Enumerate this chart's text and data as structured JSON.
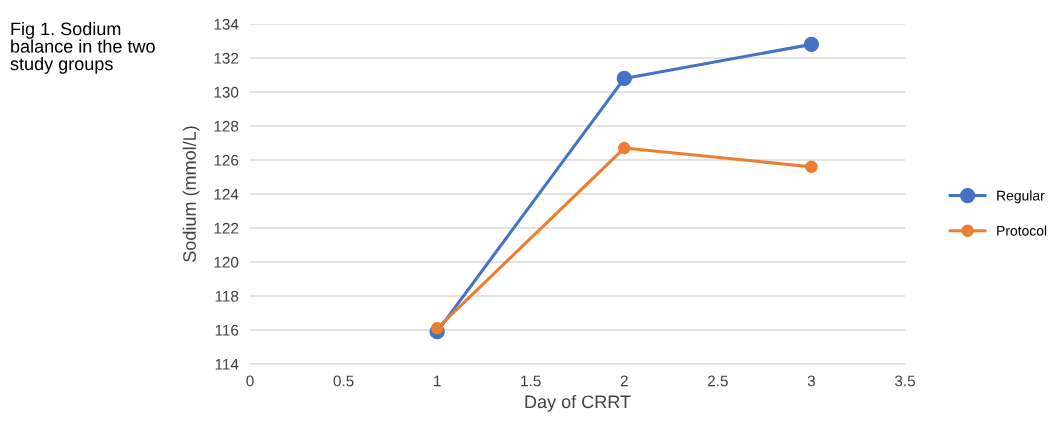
{
  "chart_data": {
    "type": "line",
    "title": "Fig 1. Sodium\nbalance in the two\nstudy groups",
    "xlabel": "Day of CRRT",
    "ylabel": "Sodium (mmol/L)",
    "x": [
      1,
      2,
      3
    ],
    "series": [
      {
        "name": "Regular",
        "color": "#4472c4",
        "values": [
          115.9,
          130.8,
          132.8
        ]
      },
      {
        "name": "Protocol",
        "color": "#ed7d31",
        "values": [
          116.1,
          126.7,
          125.6
        ]
      }
    ],
    "xlim": [
      0,
      3.5
    ],
    "xticks": [
      0,
      0.5,
      1,
      1.5,
      2,
      2.5,
      3,
      3.5
    ],
    "ylim": [
      114,
      134
    ],
    "yticks": [
      114,
      116,
      118,
      120,
      122,
      124,
      126,
      128,
      130,
      132,
      134
    ],
    "grid": "y",
    "legend": "right",
    "marker": "circle",
    "line_style": "solid"
  }
}
